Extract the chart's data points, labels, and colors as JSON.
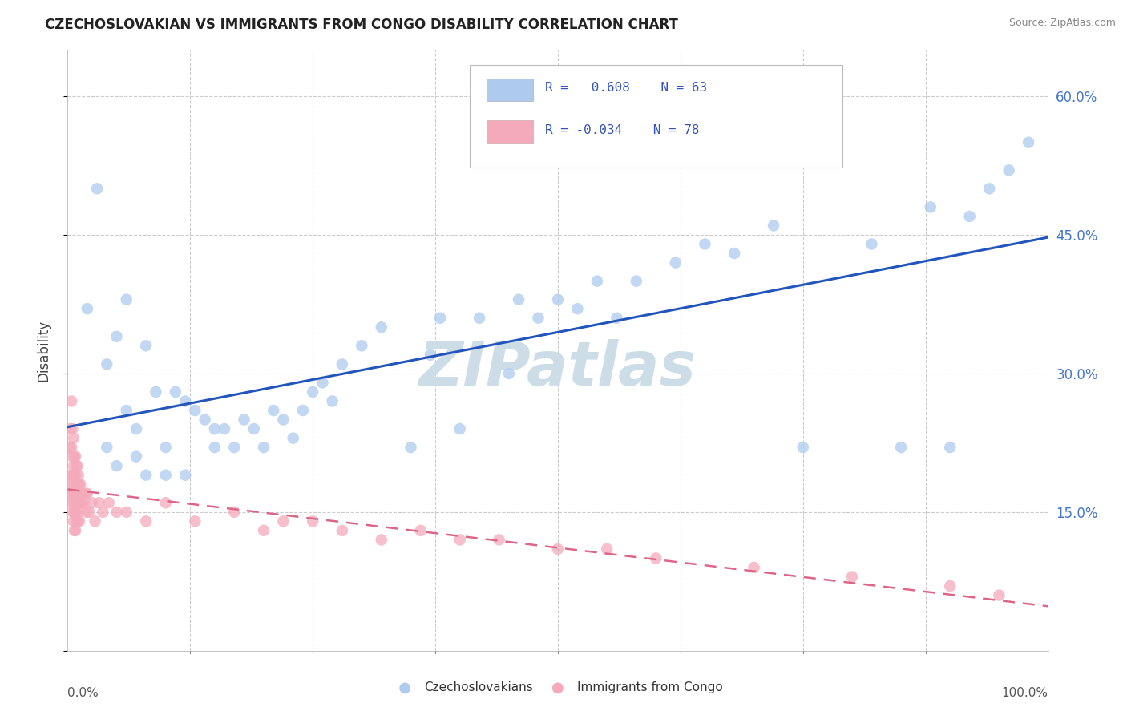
{
  "title": "CZECHOSLOVAKIAN VS IMMIGRANTS FROM CONGO DISABILITY CORRELATION CHART",
  "source": "Source: ZipAtlas.com",
  "ylabel": "Disability",
  "R_czech": 0.608,
  "N_czech": 63,
  "R_congo": -0.034,
  "N_congo": 78,
  "color_czech": "#aecbee",
  "color_czech_line": "#2255bb",
  "color_congo": "#f5aabb",
  "color_congo_line": "#dd6688",
  "watermark": "ZIPatlas",
  "watermark_color": "#ccdde8",
  "background": "#ffffff",
  "grid_color": "#cccccc",
  "xlim": [
    0,
    1.0
  ],
  "ylim": [
    0,
    0.65
  ],
  "czech_x": [
    0.02,
    0.03,
    0.04,
    0.04,
    0.05,
    0.05,
    0.06,
    0.06,
    0.07,
    0.07,
    0.08,
    0.08,
    0.09,
    0.1,
    0.1,
    0.11,
    0.12,
    0.12,
    0.13,
    0.14,
    0.15,
    0.15,
    0.16,
    0.17,
    0.18,
    0.19,
    0.2,
    0.21,
    0.22,
    0.23,
    0.24,
    0.25,
    0.26,
    0.27,
    0.28,
    0.3,
    0.32,
    0.35,
    0.37,
    0.38,
    0.4,
    0.42,
    0.45,
    0.46,
    0.48,
    0.5,
    0.52,
    0.54,
    0.56,
    0.58,
    0.62,
    0.65,
    0.68,
    0.72,
    0.75,
    0.82,
    0.85,
    0.88,
    0.9,
    0.92,
    0.94,
    0.96,
    0.98
  ],
  "czech_y": [
    0.37,
    0.5,
    0.31,
    0.22,
    0.34,
    0.2,
    0.38,
    0.26,
    0.24,
    0.21,
    0.33,
    0.19,
    0.28,
    0.22,
    0.19,
    0.28,
    0.27,
    0.19,
    0.26,
    0.25,
    0.24,
    0.22,
    0.24,
    0.22,
    0.25,
    0.24,
    0.22,
    0.26,
    0.25,
    0.23,
    0.26,
    0.28,
    0.29,
    0.27,
    0.31,
    0.33,
    0.35,
    0.22,
    0.32,
    0.36,
    0.24,
    0.36,
    0.3,
    0.38,
    0.36,
    0.38,
    0.37,
    0.4,
    0.36,
    0.4,
    0.42,
    0.44,
    0.43,
    0.46,
    0.22,
    0.44,
    0.22,
    0.48,
    0.22,
    0.47,
    0.5,
    0.52,
    0.55
  ],
  "congo_x": [
    0.002,
    0.003,
    0.003,
    0.003,
    0.004,
    0.004,
    0.004,
    0.004,
    0.005,
    0.005,
    0.005,
    0.005,
    0.005,
    0.006,
    0.006,
    0.006,
    0.006,
    0.006,
    0.007,
    0.007,
    0.007,
    0.007,
    0.007,
    0.008,
    0.008,
    0.008,
    0.008,
    0.008,
    0.009,
    0.009,
    0.009,
    0.009,
    0.01,
    0.01,
    0.01,
    0.01,
    0.011,
    0.011,
    0.011,
    0.012,
    0.012,
    0.012,
    0.013,
    0.013,
    0.014,
    0.015,
    0.016,
    0.017,
    0.018,
    0.019,
    0.02,
    0.022,
    0.025,
    0.028,
    0.032,
    0.036,
    0.042,
    0.05,
    0.06,
    0.08,
    0.1,
    0.13,
    0.17,
    0.2,
    0.22,
    0.25,
    0.28,
    0.32,
    0.36,
    0.4,
    0.44,
    0.5,
    0.55,
    0.6,
    0.7,
    0.8,
    0.9,
    0.95
  ],
  "congo_y": [
    0.22,
    0.24,
    0.19,
    0.17,
    0.27,
    0.22,
    0.18,
    0.16,
    0.24,
    0.21,
    0.19,
    0.17,
    0.15,
    0.23,
    0.2,
    0.18,
    0.16,
    0.14,
    0.21,
    0.19,
    0.17,
    0.15,
    0.13,
    0.21,
    0.19,
    0.17,
    0.15,
    0.13,
    0.2,
    0.18,
    0.16,
    0.14,
    0.2,
    0.18,
    0.16,
    0.14,
    0.19,
    0.17,
    0.15,
    0.18,
    0.16,
    0.14,
    0.18,
    0.16,
    0.17,
    0.16,
    0.17,
    0.16,
    0.17,
    0.15,
    0.17,
    0.15,
    0.16,
    0.14,
    0.16,
    0.15,
    0.16,
    0.15,
    0.15,
    0.14,
    0.16,
    0.14,
    0.15,
    0.13,
    0.14,
    0.14,
    0.13,
    0.12,
    0.13,
    0.12,
    0.12,
    0.11,
    0.11,
    0.1,
    0.09,
    0.08,
    0.07,
    0.06
  ],
  "yticks": [
    0.0,
    0.15,
    0.3,
    0.45,
    0.6
  ],
  "ytick_labels": [
    "",
    "15.0%",
    "30.0%",
    "45.0%",
    "60.0%"
  ],
  "xtick_left_label": "0.0%",
  "xtick_right_label": "100.0%"
}
